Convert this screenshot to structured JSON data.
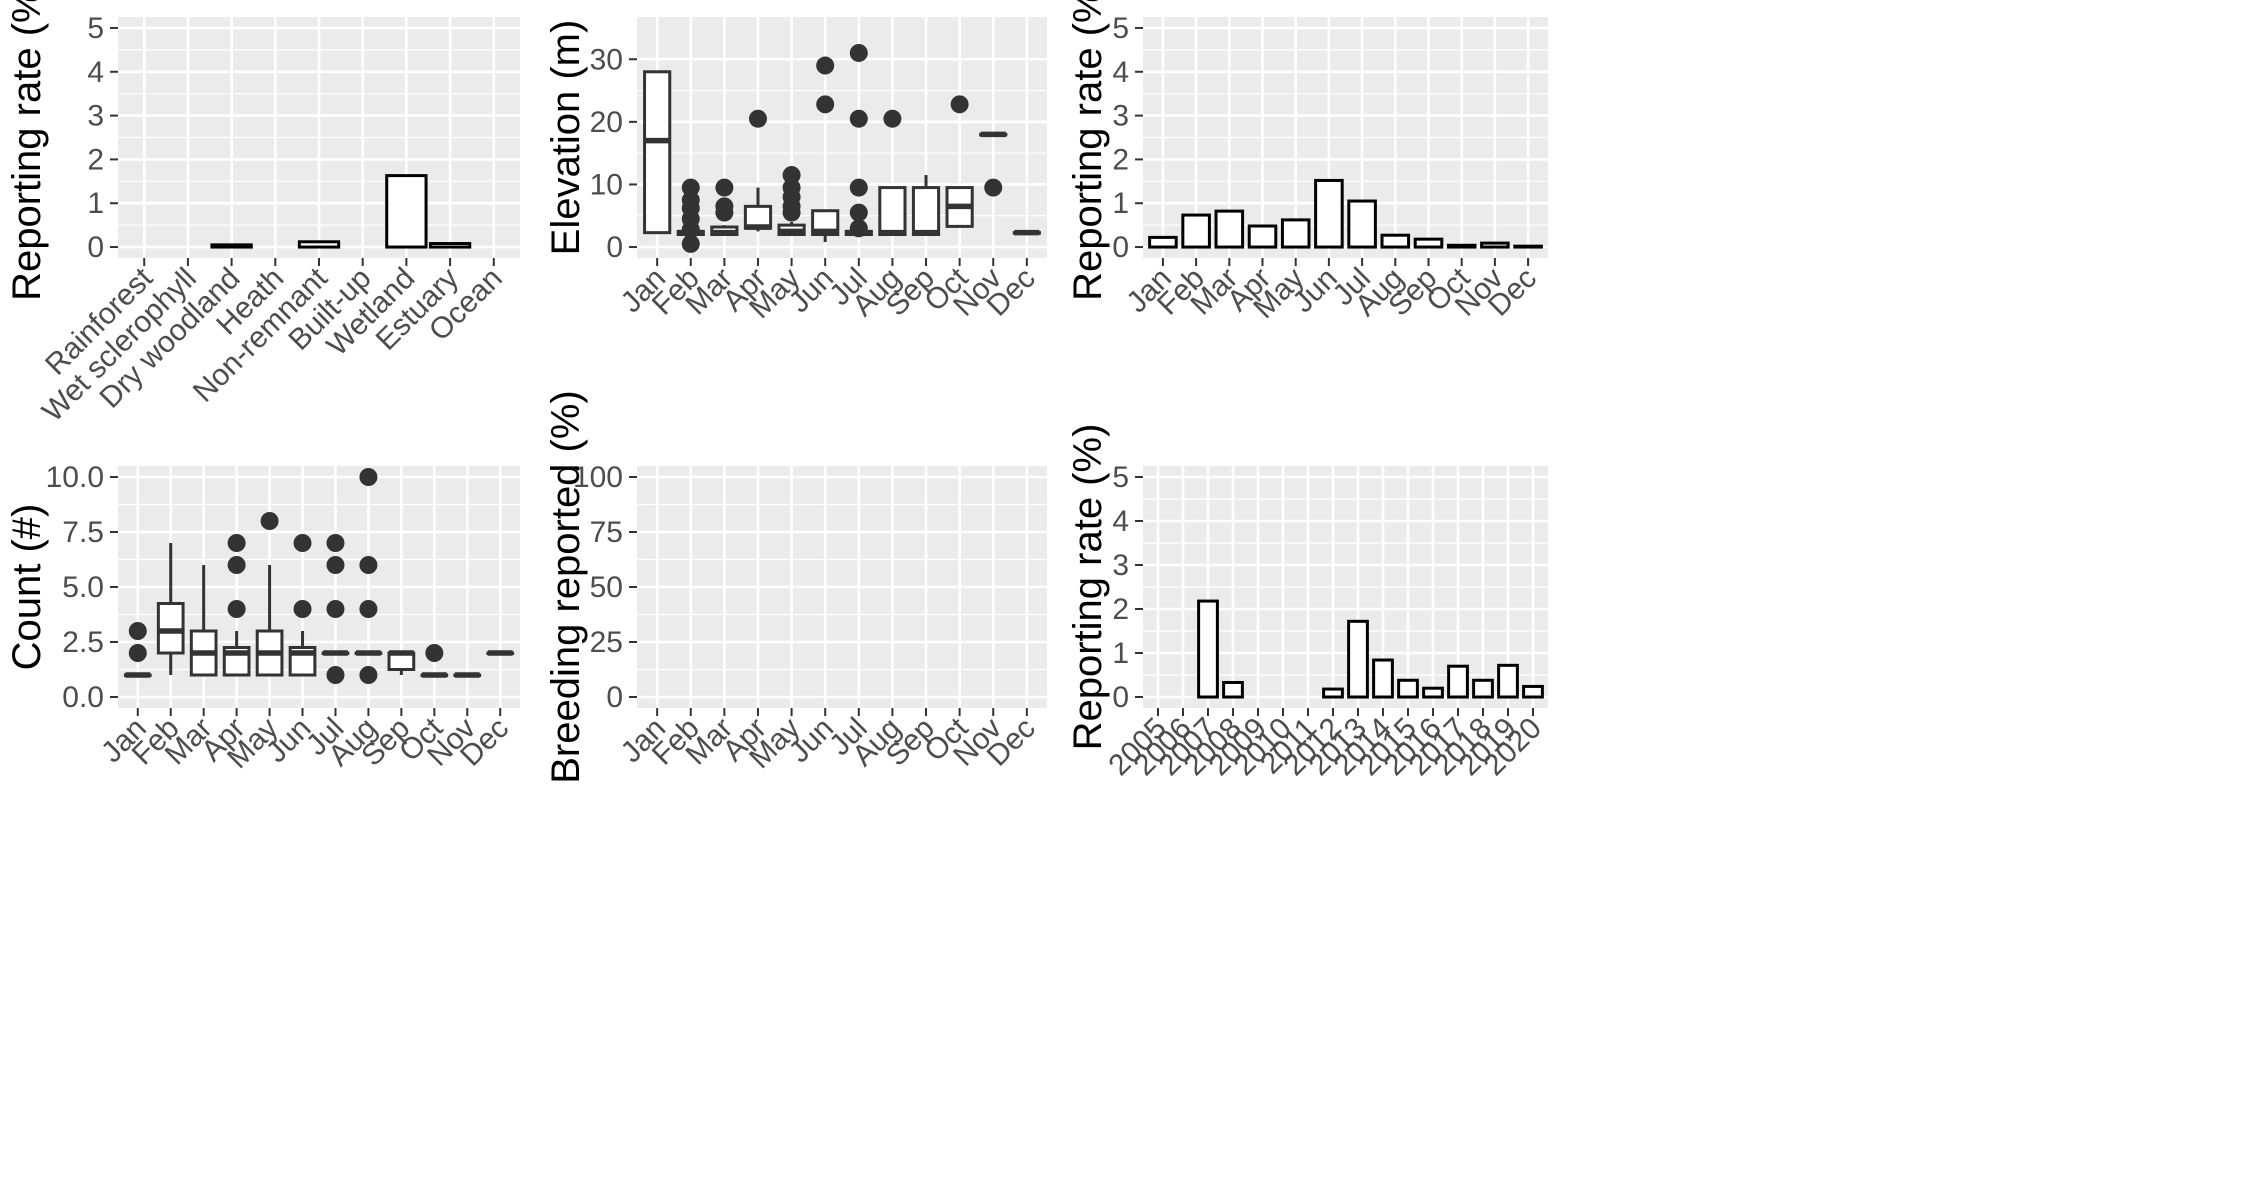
{
  "chart_data": [
    {
      "id": "habitat",
      "type": "bar",
      "ylabel": "Reporting rate (%)",
      "ylim": [
        0,
        5
      ],
      "yticks": [
        0,
        1,
        2,
        3,
        4,
        5
      ],
      "grid": true,
      "categories": [
        "Rainforest",
        "Wet sclerophyll",
        "Dry woodland",
        "Heath",
        "Non-remnant",
        "Built-up",
        "Wetland",
        "Estuary",
        "Ocean"
      ],
      "values": [
        0,
        0,
        0.05,
        0,
        0.12,
        0,
        1.63,
        0.08,
        0
      ]
    },
    {
      "id": "elevation",
      "type": "box",
      "ylabel": "Elevation (m)",
      "ylim": [
        0,
        35
      ],
      "yticks": [
        0,
        10,
        20,
        30
      ],
      "grid": true,
      "categories": [
        "Jan",
        "Feb",
        "Mar",
        "Apr",
        "May",
        "Jun",
        "Jul",
        "Aug",
        "Sep",
        "Oct",
        "Nov",
        "Dec"
      ],
      "boxes": [
        {
          "min": 2.3,
          "q1": 2.3,
          "median": 17,
          "q3": 28,
          "max": 28,
          "outliers": []
        },
        {
          "min": 2,
          "q1": 2,
          "median": 2.3,
          "q3": 2.5,
          "max": 3,
          "outliers": [
            0.5,
            2.8,
            4.5,
            6.2,
            7.5,
            9.5
          ]
        },
        {
          "min": 2,
          "q1": 2,
          "median": 2.3,
          "q3": 3.2,
          "max": 3.5,
          "outliers": [
            5.5,
            6.5,
            9.5
          ]
        },
        {
          "min": 2.5,
          "q1": 3,
          "median": 3.2,
          "q3": 6.5,
          "max": 9.5,
          "outliers": [
            20.5
          ]
        },
        {
          "min": 2,
          "q1": 2,
          "median": 2.5,
          "q3": 3.5,
          "max": 4,
          "outliers": [
            5.5,
            6.5,
            8,
            9.5,
            11.5
          ]
        },
        {
          "min": 0.8,
          "q1": 2,
          "median": 2.5,
          "q3": 5.8,
          "max": 5.8,
          "outliers": [
            22.8,
            29
          ]
        },
        {
          "min": 2,
          "q1": 2,
          "median": 2.3,
          "q3": 2.5,
          "max": 2.5,
          "outliers": [
            3,
            5.5,
            9.5,
            20.5,
            31
          ]
        },
        {
          "min": 2,
          "q1": 2,
          "median": 2.3,
          "q3": 9.5,
          "max": 9.5,
          "outliers": [
            20.5
          ]
        },
        {
          "min": 2,
          "q1": 2,
          "median": 2.3,
          "q3": 9.5,
          "max": 11.5,
          "outliers": []
        },
        {
          "min": 3.3,
          "q1": 3.3,
          "median": 6.5,
          "q3": 9.5,
          "max": 9.5,
          "outliers": [
            22.8
          ]
        },
        {
          "min": 18,
          "q1": 18,
          "median": 18,
          "q3": 18,
          "max": 18,
          "outliers": [
            9.5
          ]
        },
        {
          "min": 2.3,
          "q1": 2.3,
          "median": 2.3,
          "q3": 2.3,
          "max": 2.3,
          "outliers": []
        }
      ]
    },
    {
      "id": "month-rate",
      "type": "bar",
      "ylabel": "Reporting rate (%)",
      "ylim": [
        0,
        5
      ],
      "yticks": [
        0,
        1,
        2,
        3,
        4,
        5
      ],
      "grid": true,
      "categories": [
        "Jan",
        "Feb",
        "Mar",
        "Apr",
        "May",
        "Jun",
        "Jul",
        "Aug",
        "Sep",
        "Oct",
        "Nov",
        "Dec"
      ],
      "values": [
        0.22,
        0.73,
        0.82,
        0.48,
        0.62,
        1.52,
        1.05,
        0.27,
        0.18,
        0.04,
        0.09,
        0.02
      ]
    },
    {
      "id": "count",
      "type": "box",
      "ylabel": "Count (#)",
      "ylim": [
        0,
        10
      ],
      "yticks": [
        0,
        2.5,
        5,
        7.5,
        10
      ],
      "ytick_labels": [
        "0.0",
        "2.5",
        "5.0",
        "7.5",
        "10.0"
      ],
      "grid": true,
      "categories": [
        "Jan",
        "Feb",
        "Mar",
        "Apr",
        "May",
        "Jun",
        "Jul",
        "Aug",
        "Sep",
        "Oct",
        "Nov",
        "Dec"
      ],
      "boxes": [
        {
          "min": 1,
          "q1": 1,
          "median": 1,
          "q3": 1,
          "max": 1,
          "outliers": [
            2,
            3
          ]
        },
        {
          "min": 1,
          "q1": 2,
          "median": 3,
          "q3": 4.25,
          "max": 7,
          "outliers": []
        },
        {
          "min": 1,
          "q1": 1,
          "median": 2,
          "q3": 3,
          "max": 6,
          "outliers": []
        },
        {
          "min": 1,
          "q1": 1,
          "median": 2,
          "q3": 2.25,
          "max": 3,
          "outliers": [
            4,
            6,
            7
          ]
        },
        {
          "min": 1,
          "q1": 1,
          "median": 2,
          "q3": 3,
          "max": 6,
          "outliers": [
            8
          ]
        },
        {
          "min": 1,
          "q1": 1,
          "median": 2,
          "q3": 2.25,
          "max": 3,
          "outliers": [
            4,
            7
          ]
        },
        {
          "min": 2,
          "q1": 2,
          "median": 2,
          "q3": 2,
          "max": 2,
          "outliers": [
            1,
            4,
            6,
            7
          ]
        },
        {
          "min": 2,
          "q1": 2,
          "median": 2,
          "q3": 2,
          "max": 2,
          "outliers": [
            1,
            4,
            6,
            10
          ]
        },
        {
          "min": 1,
          "q1": 1.25,
          "median": 2,
          "q3": 2,
          "max": 2,
          "outliers": []
        },
        {
          "min": 1,
          "q1": 1,
          "median": 1,
          "q3": 1,
          "max": 1,
          "outliers": [
            2
          ]
        },
        {
          "min": 1,
          "q1": 1,
          "median": 1,
          "q3": 1,
          "max": 1,
          "outliers": []
        },
        {
          "min": 2,
          "q1": 2,
          "median": 2,
          "q3": 2,
          "max": 2,
          "outliers": []
        }
      ]
    },
    {
      "id": "breeding",
      "type": "bar",
      "ylabel": "Breeding reported (%)",
      "ylim": [
        0,
        100
      ],
      "yticks": [
        0,
        25,
        50,
        75,
        100
      ],
      "grid": true,
      "categories": [
        "Jan",
        "Feb",
        "Mar",
        "Apr",
        "May",
        "Jun",
        "Jul",
        "Aug",
        "Sep",
        "Oct",
        "Nov",
        "Dec"
      ],
      "values": [
        0,
        0,
        0,
        0,
        0,
        0,
        0,
        0,
        0,
        0,
        0,
        0
      ]
    },
    {
      "id": "year-rate",
      "type": "bar",
      "ylabel": "Reporting rate (%)",
      "ylim": [
        0,
        5
      ],
      "yticks": [
        0,
        1,
        2,
        3,
        4,
        5
      ],
      "grid": true,
      "categories": [
        "2005",
        "2006",
        "2007",
        "2008",
        "2009",
        "2010",
        "2011",
        "2012",
        "2013",
        "2014",
        "2015",
        "2016",
        "2017",
        "2018",
        "2019",
        "2020"
      ],
      "values": [
        0,
        0,
        2.18,
        0.33,
        0,
        0,
        0,
        0.18,
        1.72,
        0.84,
        0.38,
        0.2,
        0.7,
        0.38,
        0.72,
        0.24
      ]
    }
  ]
}
